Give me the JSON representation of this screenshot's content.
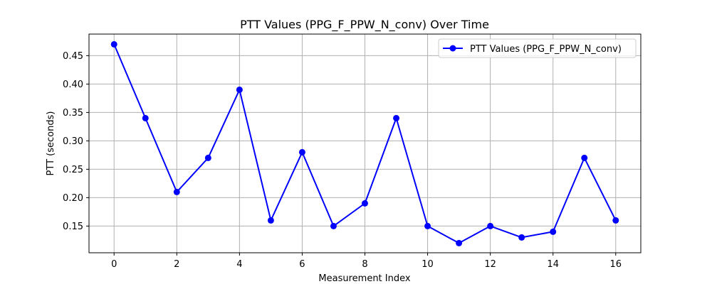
{
  "chart_data": {
    "type": "line",
    "title": "PTT Values (PPG_F_PPW_N_conv) Over Time",
    "xlabel": "Measurement Index",
    "ylabel": "PTT (seconds)",
    "x": [
      0,
      1,
      2,
      3,
      4,
      5,
      6,
      7,
      8,
      9,
      10,
      11,
      12,
      13,
      14,
      15,
      16
    ],
    "series": [
      {
        "name": "PTT Values (PPG_F_PPW_N_conv)",
        "color": "#0000ff",
        "marker": "circle",
        "values": [
          0.47,
          0.34,
          0.21,
          0.27,
          0.39,
          0.16,
          0.28,
          0.15,
          0.19,
          0.34,
          0.15,
          0.12,
          0.15,
          0.13,
          0.14,
          0.27,
          0.16
        ]
      }
    ],
    "xlim": [
      -0.8,
      16.8
    ],
    "ylim": [
      0.103,
      0.488
    ],
    "xticks": [
      0,
      2,
      4,
      6,
      8,
      10,
      12,
      14,
      16
    ],
    "xtick_labels": [
      "0",
      "2",
      "4",
      "6",
      "8",
      "10",
      "12",
      "14",
      "16"
    ],
    "yticks": [
      0.15,
      0.2,
      0.25,
      0.3,
      0.35,
      0.4,
      0.45
    ],
    "ytick_labels": [
      "0.15",
      "0.20",
      "0.25",
      "0.30",
      "0.35",
      "0.40",
      "0.45"
    ],
    "grid": true,
    "legend_position": "top-right"
  }
}
